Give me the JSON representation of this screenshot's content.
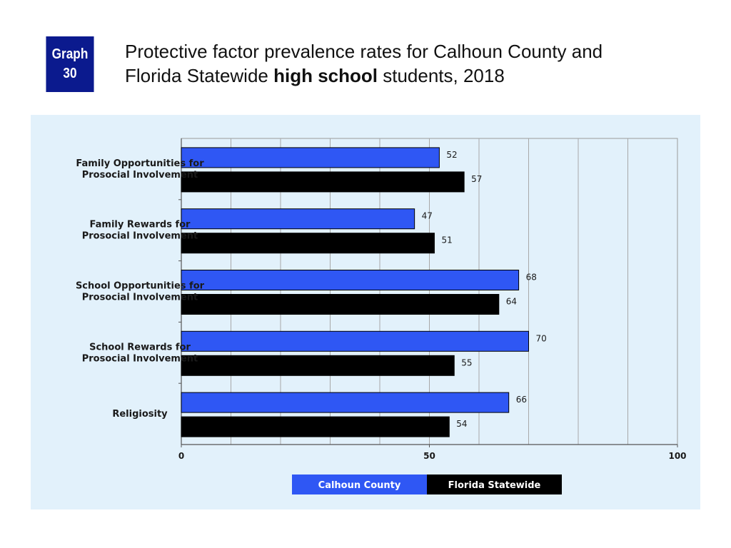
{
  "badge": {
    "line1": "Graph",
    "line2": "30"
  },
  "title": {
    "part1": "Protective factor prevalence rates for Calhoun County and",
    "part2": "Florida Statewide ",
    "part2_bold": "high school",
    "part3": " students, 2018"
  },
  "colors": {
    "calhoun": "#2f57f4",
    "florida": "#000000",
    "panel": "#e2f1fb",
    "badge": "#0b1a8e"
  },
  "chart_data": {
    "type": "bar",
    "orientation": "horizontal",
    "categories": [
      [
        "Family Opportunities for",
        "Prosocial Involvement"
      ],
      [
        "Family Rewards for",
        "Prosocial Involvement"
      ],
      [
        "School Opportunities for",
        "Prosocial Involvement"
      ],
      [
        "School Rewards for",
        "Prosocial Involvement"
      ],
      [
        "Religiosity"
      ]
    ],
    "series": [
      {
        "name": "Calhoun County",
        "values": [
          52,
          47,
          68,
          70,
          66
        ]
      },
      {
        "name": "Florida Statewide",
        "values": [
          57,
          51,
          64,
          55,
          54
        ]
      }
    ],
    "xlim": [
      0,
      100
    ],
    "x_ticks": [
      0,
      50,
      100
    ],
    "grid": "vertical every 10",
    "legend": "bottom-center"
  }
}
